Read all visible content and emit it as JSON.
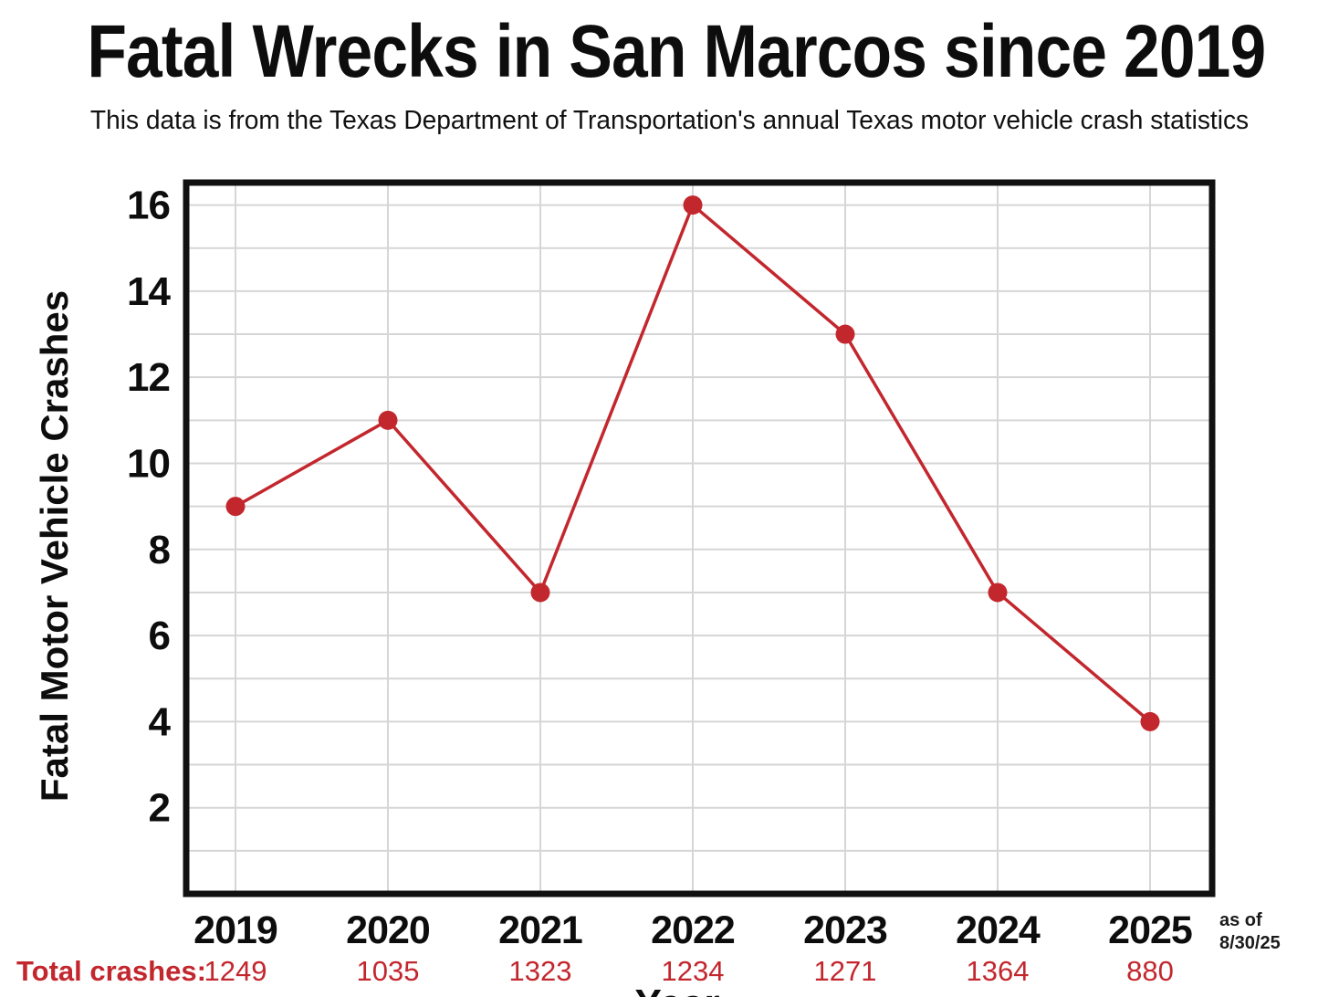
{
  "header": {
    "title": "Fatal Wrecks in San Marcos since 2019",
    "subtitle": "This data is from the Texas Department of Transportation's annual Texas motor vehicle crash statistics"
  },
  "totals_row": {
    "label": "Total crashes:"
  },
  "note": {
    "line1": "as of",
    "line2": "8/30/25"
  },
  "colors": {
    "accent_red": "#c3272e",
    "gridline_gray": "#d6d6d6",
    "axis_black": "#111111",
    "text_black": "#0d0d0d"
  },
  "chart_data": {
    "type": "line",
    "title": "Fatal Wrecks in San Marcos since 2019",
    "subtitle": "This data is from the Texas Department of Transportation's annual Texas motor vehicle crash statistics",
    "xlabel": "Year",
    "ylabel": "Fatal Motor Vehicle Crashes",
    "categories": [
      "2019",
      "2020",
      "2021",
      "2022",
      "2023",
      "2024",
      "2025"
    ],
    "series": [
      {
        "name": "Fatal Motor Vehicle Crashes",
        "values": [
          9,
          11,
          7,
          16,
          13,
          7,
          4
        ]
      },
      {
        "name": "Total crashes",
        "values": [
          1249,
          1035,
          1323,
          1234,
          1271,
          1364,
          880
        ]
      }
    ],
    "ylim": [
      0,
      16.5
    ],
    "y_major_ticks": [
      2,
      4,
      6,
      8,
      10,
      12,
      14,
      16
    ],
    "y_minor_step": 1,
    "grid": true,
    "legend_position": "none",
    "annotation": "as of 8/30/25",
    "line_color": "#c3272e",
    "marker": "circle"
  }
}
